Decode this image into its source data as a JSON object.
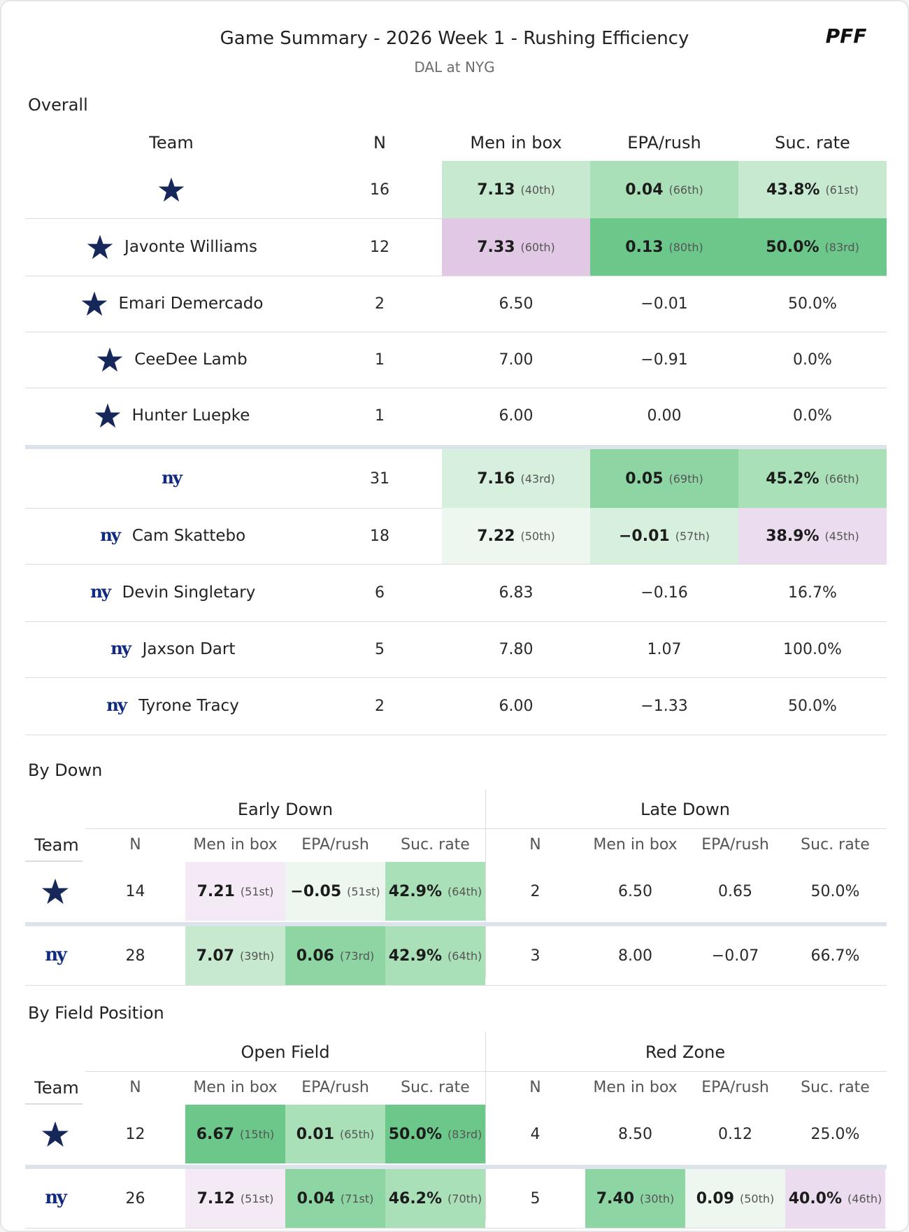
{
  "header": {
    "title": "Game Summary - 2026 Week 1 - Rushing Efficiency",
    "subtitle": "DAL at NYG",
    "logo": "PFF"
  },
  "colors": {
    "dark_green": "#6cc88a",
    "mid_green": "#8dd6a3",
    "green": "#a9e0b7",
    "light_green": "#c6e9cf",
    "pale_green": "#d7f0dd",
    "very_pale_green": "#edf7ef",
    "purple": "#e1c8e5",
    "light_purple": "#ecdcef",
    "pale_purple": "#f3eaf5",
    "dal_navy": "#16285a",
    "nyg_blue": "#0f2a80"
  },
  "overall": {
    "section_title": "Overall",
    "headers": [
      "Team",
      "N",
      "Men in box",
      "EPA/rush",
      "Suc. rate"
    ],
    "rows": [
      {
        "icon": "dallas-star-icon",
        "name": "",
        "n": "16",
        "mib": "7.13",
        "mib_rank": "(40th)",
        "epa": "0.04",
        "epa_rank": "(66th)",
        "suc": "43.8%",
        "suc_rank": "(61st)"
      },
      {
        "icon": "dallas-star-icon",
        "name": "Javonte Williams",
        "n": "12",
        "mib": "7.33",
        "mib_rank": "(60th)",
        "epa": "0.13",
        "epa_rank": "(80th)",
        "suc": "50.0%",
        "suc_rank": "(83rd)"
      },
      {
        "icon": "dallas-star-icon",
        "name": "Emari Demercado",
        "n": "2",
        "mib": "6.50",
        "mib_rank": "",
        "epa": "−0.01",
        "epa_rank": "",
        "suc": "50.0%",
        "suc_rank": ""
      },
      {
        "icon": "dallas-star-icon",
        "name": "CeeDee Lamb",
        "n": "1",
        "mib": "7.00",
        "mib_rank": "",
        "epa": "−0.91",
        "epa_rank": "",
        "suc": "0.0%",
        "suc_rank": ""
      },
      {
        "icon": "dallas-star-icon",
        "name": "Hunter Luepke",
        "n": "1",
        "mib": "6.00",
        "mib_rank": "",
        "epa": "0.00",
        "epa_rank": "",
        "suc": "0.0%",
        "suc_rank": ""
      },
      {
        "icon": "giants-ny-icon",
        "name": "",
        "n": "31",
        "mib": "7.16",
        "mib_rank": "(43rd)",
        "epa": "0.05",
        "epa_rank": "(69th)",
        "suc": "45.2%",
        "suc_rank": "(66th)"
      },
      {
        "icon": "giants-ny-icon",
        "name": "Cam Skattebo",
        "n": "18",
        "mib": "7.22",
        "mib_rank": "(50th)",
        "epa": "−0.01",
        "epa_rank": "(57th)",
        "suc": "38.9%",
        "suc_rank": "(45th)"
      },
      {
        "icon": "giants-ny-icon",
        "name": "Devin Singletary",
        "n": "6",
        "mib": "6.83",
        "mib_rank": "",
        "epa": "−0.16",
        "epa_rank": "",
        "suc": "16.7%",
        "suc_rank": ""
      },
      {
        "icon": "giants-ny-icon",
        "name": "Jaxson Dart",
        "n": "5",
        "mib": "7.80",
        "mib_rank": "",
        "epa": "1.07",
        "epa_rank": "",
        "suc": "100.0%",
        "suc_rank": ""
      },
      {
        "icon": "giants-ny-icon",
        "name": "Tyrone Tracy",
        "n": "2",
        "mib": "6.00",
        "mib_rank": "",
        "epa": "−1.33",
        "epa_rank": "",
        "suc": "50.0%",
        "suc_rank": ""
      }
    ]
  },
  "by_down": {
    "section_title": "By Down",
    "group_left": "Early Down",
    "group_right": "Late Down",
    "team_header": "Team",
    "sub_headers": [
      "N",
      "Men in box",
      "EPA/rush",
      "Suc. rate",
      "N",
      "Men in box",
      "EPA/rush",
      "Suc. rate"
    ],
    "rows": [
      {
        "icon": "dallas-star-icon",
        "cells": [
          {
            "v": "14",
            "r": ""
          },
          {
            "v": "7.21",
            "r": "(51st)"
          },
          {
            "v": "−0.05",
            "r": "(51st)"
          },
          {
            "v": "42.9%",
            "r": "(64th)"
          },
          {
            "v": "2",
            "r": ""
          },
          {
            "v": "6.50",
            "r": ""
          },
          {
            "v": "0.65",
            "r": ""
          },
          {
            "v": "50.0%",
            "r": ""
          }
        ]
      },
      {
        "icon": "giants-ny-icon",
        "cells": [
          {
            "v": "28",
            "r": ""
          },
          {
            "v": "7.07",
            "r": "(39th)"
          },
          {
            "v": "0.06",
            "r": "(73rd)"
          },
          {
            "v": "42.9%",
            "r": "(64th)"
          },
          {
            "v": "3",
            "r": ""
          },
          {
            "v": "8.00",
            "r": ""
          },
          {
            "v": "−0.07",
            "r": ""
          },
          {
            "v": "66.7%",
            "r": ""
          }
        ]
      }
    ]
  },
  "by_field": {
    "section_title": "By Field Position",
    "group_left": "Open Field",
    "group_right": "Red Zone",
    "team_header": "Team",
    "sub_headers": [
      "N",
      "Men in box",
      "EPA/rush",
      "Suc. rate",
      "N",
      "Men in box",
      "EPA/rush",
      "Suc. rate"
    ],
    "rows": [
      {
        "icon": "dallas-star-icon",
        "cells": [
          {
            "v": "12",
            "r": ""
          },
          {
            "v": "6.67",
            "r": "(15th)"
          },
          {
            "v": "0.01",
            "r": "(65th)"
          },
          {
            "v": "50.0%",
            "r": "(83rd)"
          },
          {
            "v": "4",
            "r": ""
          },
          {
            "v": "8.50",
            "r": ""
          },
          {
            "v": "0.12",
            "r": ""
          },
          {
            "v": "25.0%",
            "r": ""
          }
        ]
      },
      {
        "icon": "giants-ny-icon",
        "cells": [
          {
            "v": "26",
            "r": ""
          },
          {
            "v": "7.12",
            "r": "(51st)"
          },
          {
            "v": "0.04",
            "r": "(71st)"
          },
          {
            "v": "46.2%",
            "r": "(70th)"
          },
          {
            "v": "5",
            "r": ""
          },
          {
            "v": "7.40",
            "r": "(30th)"
          },
          {
            "v": "0.09",
            "r": "(50th)"
          },
          {
            "v": "40.0%",
            "r": "(46th)"
          }
        ]
      }
    ]
  }
}
